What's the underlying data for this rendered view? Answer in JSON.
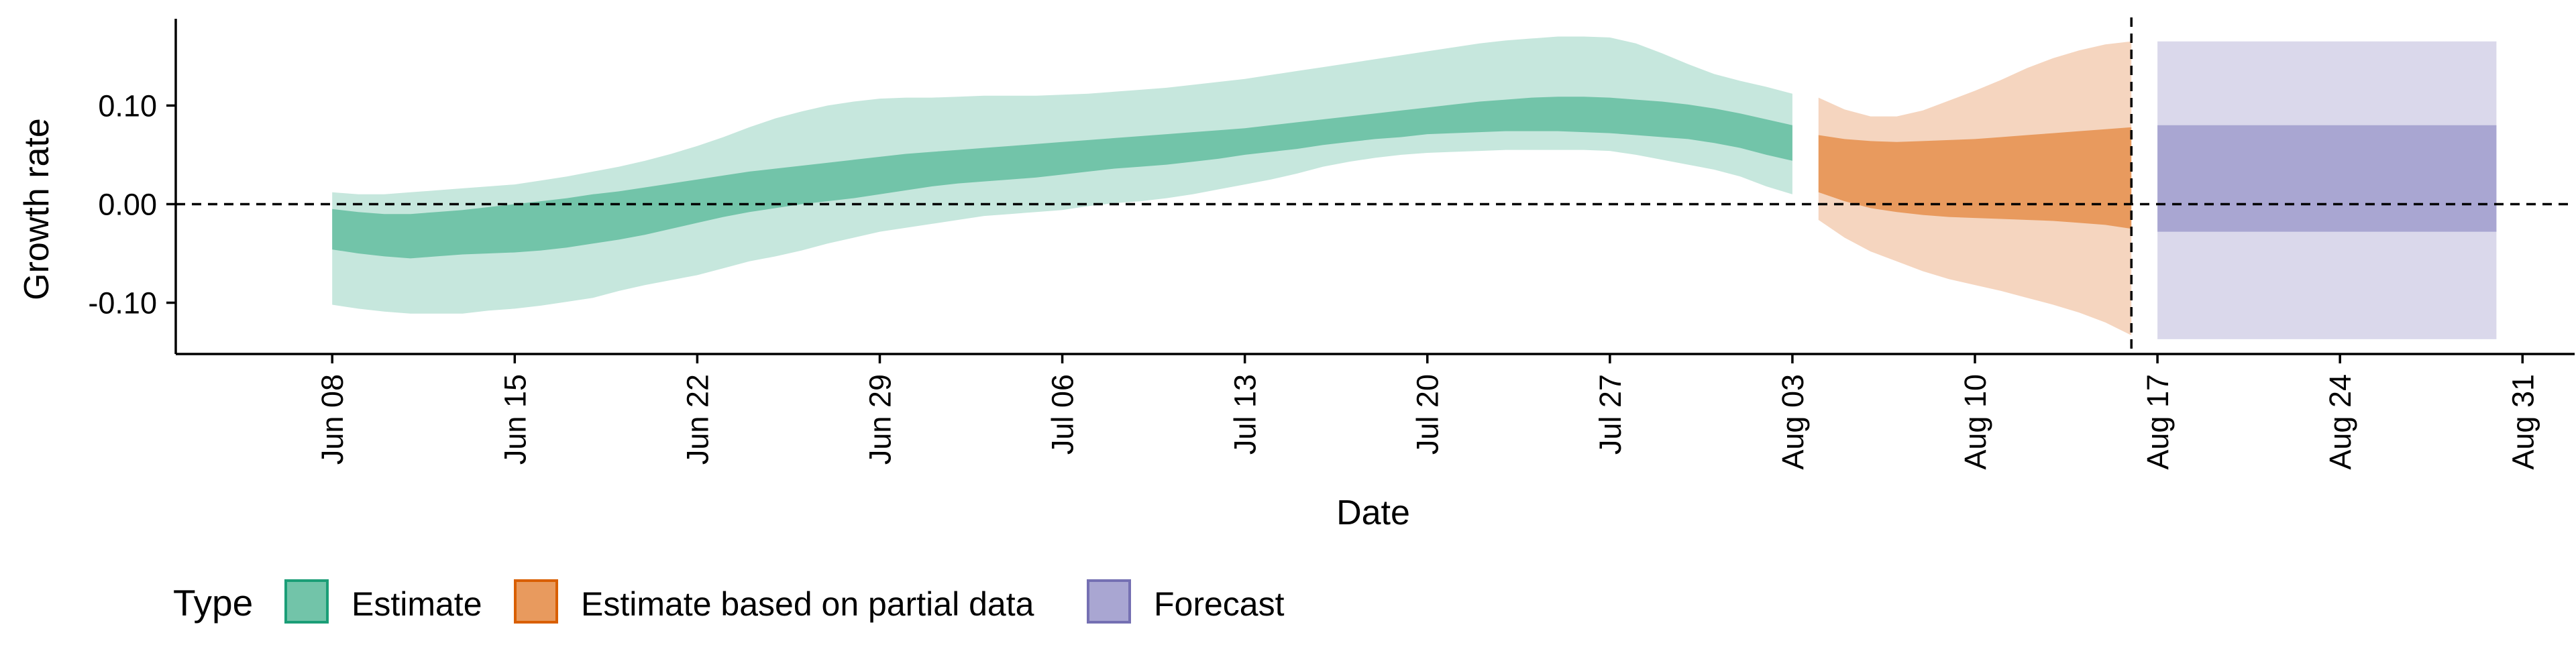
{
  "chart_data": {
    "type": "area",
    "xlabel": "Date",
    "ylabel": "Growth rate",
    "x_range": [
      "2020-06-02",
      "2020-09-02"
    ],
    "y_range": [
      -0.152,
      0.188
    ],
    "x_ticks": [
      {
        "date": "2020-06-08",
        "label": "Jun 08"
      },
      {
        "date": "2020-06-15",
        "label": "Jun 15"
      },
      {
        "date": "2020-06-22",
        "label": "Jun 22"
      },
      {
        "date": "2020-06-29",
        "label": "Jun 29"
      },
      {
        "date": "2020-07-06",
        "label": "Jul 06"
      },
      {
        "date": "2020-07-13",
        "label": "Jul 13"
      },
      {
        "date": "2020-07-20",
        "label": "Jul 20"
      },
      {
        "date": "2020-07-27",
        "label": "Jul 27"
      },
      {
        "date": "2020-08-03",
        "label": "Aug 03"
      },
      {
        "date": "2020-08-10",
        "label": "Aug 10"
      },
      {
        "date": "2020-08-17",
        "label": "Aug 17"
      },
      {
        "date": "2020-08-24",
        "label": "Aug 24"
      },
      {
        "date": "2020-08-31",
        "label": "Aug 31"
      }
    ],
    "y_ticks": [
      {
        "value": 0.1,
        "label": "0.10"
      },
      {
        "value": 0.0,
        "label": "0.00"
      },
      {
        "value": -0.1,
        "label": "-0.10"
      }
    ],
    "hline": 0,
    "vline": "2020-08-16",
    "legend": {
      "title": "Type",
      "position": "bottom-left"
    },
    "series": [
      {
        "name": "Estimate",
        "color": "#1B9E77",
        "outer_fill": "#C6E7DD",
        "inner_fill": "#72C4A9",
        "dates": [
          "2020-06-08",
          "2020-06-09",
          "2020-06-10",
          "2020-06-11",
          "2020-06-12",
          "2020-06-13",
          "2020-06-14",
          "2020-06-15",
          "2020-06-16",
          "2020-06-17",
          "2020-06-18",
          "2020-06-19",
          "2020-06-20",
          "2020-06-21",
          "2020-06-22",
          "2020-06-23",
          "2020-06-24",
          "2020-06-25",
          "2020-06-26",
          "2020-06-27",
          "2020-06-28",
          "2020-06-29",
          "2020-06-30",
          "2020-07-01",
          "2020-07-02",
          "2020-07-03",
          "2020-07-04",
          "2020-07-05",
          "2020-07-06",
          "2020-07-07",
          "2020-07-08",
          "2020-07-09",
          "2020-07-10",
          "2020-07-11",
          "2020-07-12",
          "2020-07-13",
          "2020-07-14",
          "2020-07-15",
          "2020-07-16",
          "2020-07-17",
          "2020-07-18",
          "2020-07-19",
          "2020-07-20",
          "2020-07-21",
          "2020-07-22",
          "2020-07-23",
          "2020-07-24",
          "2020-07-25",
          "2020-07-26",
          "2020-07-27",
          "2020-07-28",
          "2020-07-29",
          "2020-07-30",
          "2020-07-31",
          "2020-08-01",
          "2020-08-02",
          "2020-08-03"
        ],
        "lower90": [
          -0.102,
          -0.106,
          -0.109,
          -0.111,
          -0.111,
          -0.111,
          -0.108,
          -0.106,
          -0.103,
          -0.099,
          -0.095,
          -0.088,
          -0.082,
          -0.077,
          -0.072,
          -0.065,
          -0.058,
          -0.053,
          -0.047,
          -0.04,
          -0.034,
          -0.028,
          -0.024,
          -0.02,
          -0.016,
          -0.012,
          -0.01,
          -0.008,
          -0.006,
          -0.002,
          0.001,
          0.003,
          0.006,
          0.01,
          0.015,
          0.02,
          0.025,
          0.031,
          0.038,
          0.043,
          0.047,
          0.05,
          0.052,
          0.053,
          0.054,
          0.055,
          0.055,
          0.055,
          0.055,
          0.054,
          0.05,
          0.045,
          0.04,
          0.035,
          0.028,
          0.018,
          0.01
        ],
        "lower50": [
          -0.046,
          -0.05,
          -0.053,
          -0.055,
          -0.053,
          -0.051,
          -0.05,
          -0.049,
          -0.047,
          -0.044,
          -0.04,
          -0.036,
          -0.031,
          -0.025,
          -0.019,
          -0.013,
          -0.008,
          -0.004,
          0.0,
          0.003,
          0.006,
          0.01,
          0.014,
          0.018,
          0.021,
          0.023,
          0.025,
          0.027,
          0.03,
          0.033,
          0.036,
          0.038,
          0.04,
          0.043,
          0.046,
          0.05,
          0.053,
          0.056,
          0.06,
          0.063,
          0.066,
          0.068,
          0.071,
          0.072,
          0.073,
          0.074,
          0.074,
          0.074,
          0.073,
          0.072,
          0.07,
          0.068,
          0.066,
          0.062,
          0.057,
          0.05,
          0.044
        ],
        "upper50": [
          -0.005,
          -0.008,
          -0.01,
          -0.01,
          -0.008,
          -0.006,
          -0.003,
          0.0,
          0.003,
          0.006,
          0.01,
          0.013,
          0.017,
          0.021,
          0.025,
          0.029,
          0.033,
          0.036,
          0.039,
          0.042,
          0.045,
          0.048,
          0.051,
          0.053,
          0.055,
          0.057,
          0.059,
          0.061,
          0.063,
          0.065,
          0.067,
          0.069,
          0.071,
          0.073,
          0.075,
          0.077,
          0.08,
          0.083,
          0.086,
          0.089,
          0.092,
          0.095,
          0.098,
          0.101,
          0.104,
          0.106,
          0.108,
          0.109,
          0.109,
          0.108,
          0.106,
          0.104,
          0.101,
          0.097,
          0.092,
          0.086,
          0.08
        ],
        "upper90": [
          0.012,
          0.01,
          0.01,
          0.012,
          0.014,
          0.016,
          0.018,
          0.02,
          0.024,
          0.028,
          0.033,
          0.038,
          0.044,
          0.051,
          0.059,
          0.068,
          0.078,
          0.087,
          0.094,
          0.1,
          0.104,
          0.107,
          0.108,
          0.108,
          0.109,
          0.11,
          0.11,
          0.11,
          0.111,
          0.112,
          0.114,
          0.116,
          0.118,
          0.121,
          0.124,
          0.127,
          0.131,
          0.135,
          0.139,
          0.143,
          0.147,
          0.151,
          0.155,
          0.159,
          0.163,
          0.166,
          0.168,
          0.17,
          0.17,
          0.169,
          0.163,
          0.153,
          0.142,
          0.132,
          0.125,
          0.119,
          0.112
        ]
      },
      {
        "name": "Estimate based on partial data",
        "color": "#D95F02",
        "outer_fill": "#F5D5BF",
        "inner_fill": "#E89A5E",
        "dates": [
          "2020-08-04",
          "2020-08-05",
          "2020-08-06",
          "2020-08-07",
          "2020-08-08",
          "2020-08-09",
          "2020-08-10",
          "2020-08-11",
          "2020-08-12",
          "2020-08-13",
          "2020-08-14",
          "2020-08-15",
          "2020-08-16"
        ],
        "lower90": [
          -0.016,
          -0.034,
          -0.048,
          -0.058,
          -0.068,
          -0.076,
          -0.082,
          -0.088,
          -0.095,
          -0.102,
          -0.11,
          -0.12,
          -0.133
        ],
        "lower50": [
          0.012,
          0.003,
          -0.004,
          -0.008,
          -0.011,
          -0.013,
          -0.014,
          -0.015,
          -0.016,
          -0.017,
          -0.019,
          -0.021,
          -0.025
        ],
        "upper50": [
          0.07,
          0.066,
          0.064,
          0.063,
          0.064,
          0.065,
          0.066,
          0.068,
          0.07,
          0.072,
          0.074,
          0.076,
          0.078
        ],
        "upper90": [
          0.108,
          0.096,
          0.089,
          0.089,
          0.095,
          0.105,
          0.115,
          0.126,
          0.138,
          0.148,
          0.156,
          0.162,
          0.165
        ]
      },
      {
        "name": "Forecast",
        "color": "#7570B3",
        "outer_fill": "#DAD8EB",
        "inner_fill": "#A9A6D2",
        "dates": [
          "2020-08-17",
          "2020-08-30"
        ],
        "lower90": [
          -0.137,
          -0.137
        ],
        "lower50": [
          -0.028,
          -0.028
        ],
        "upper50": [
          0.08,
          0.08
        ],
        "upper90": [
          0.165,
          0.165
        ]
      }
    ]
  }
}
